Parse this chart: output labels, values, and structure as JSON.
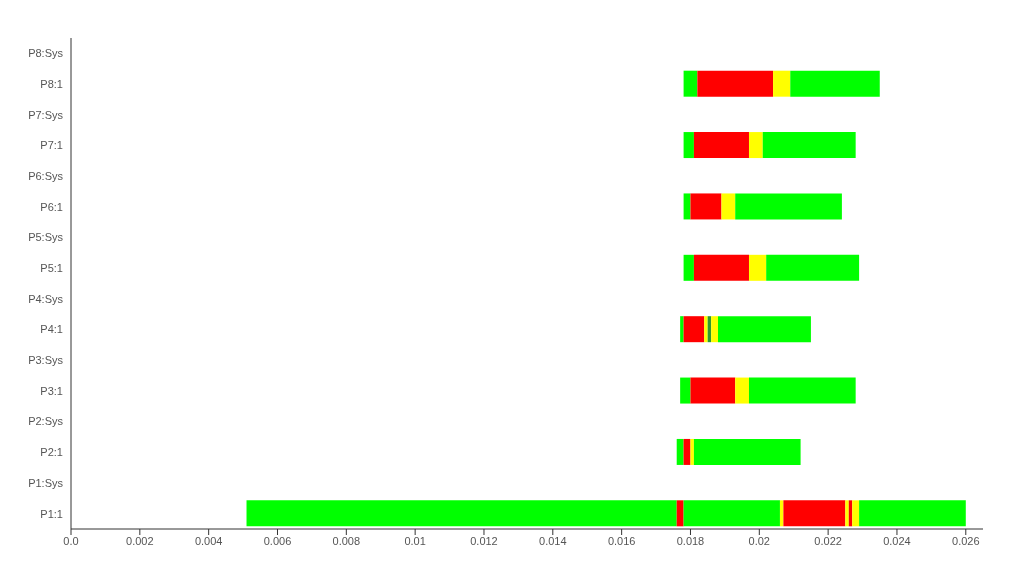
{
  "chart_data": {
    "type": "bar",
    "orientation": "horizontal",
    "grid": false,
    "legend": false,
    "categories": [
      "P8:Sys",
      "P8:1",
      "P7:Sys",
      "P7:1",
      "P6:Sys",
      "P6:1",
      "P5:Sys",
      "P5:1",
      "P4:Sys",
      "P4:1",
      "P3:Sys",
      "P3:1",
      "P2:Sys",
      "P2:1",
      "P1:Sys",
      "P1:1"
    ],
    "xlim": [
      0,
      0.0265
    ],
    "xticks": [
      {
        "value": 0,
        "label": "0.0"
      },
      0.002,
      0.004,
      0.006,
      0.008,
      0.01,
      0.012,
      0.014,
      0.016,
      0.018,
      0.02,
      0.022,
      0.024,
      0.026
    ],
    "series": [
      {
        "color": "#00ff00",
        "base": [
          null,
          0.0178,
          null,
          0.0178,
          null,
          0.0178,
          null,
          0.0178,
          null,
          0.0177,
          null,
          0.0177,
          null,
          0.0176,
          null,
          0.0051
        ],
        "values": [
          null,
          0.0004,
          null,
          0.0003,
          null,
          0.0002,
          null,
          0.0003,
          null,
          0.0001,
          null,
          0.0003,
          null,
          0.0002,
          null,
          0.0125
        ]
      },
      {
        "color": "#ff0000",
        "base": [
          null,
          0.0182,
          null,
          0.0181,
          null,
          0.018,
          null,
          0.0181,
          null,
          0.0178,
          null,
          0.018,
          null,
          0.0178,
          null,
          0.0176
        ],
        "values": [
          null,
          0.0022,
          null,
          0.0016,
          null,
          0.0009,
          null,
          0.0016,
          null,
          0.0006,
          null,
          0.0013,
          null,
          0.0002,
          null,
          0.0002
        ]
      },
      {
        "color": "#00ff00",
        "base": [
          null,
          null,
          null,
          null,
          null,
          null,
          null,
          null,
          null,
          null,
          null,
          null,
          null,
          null,
          null,
          0.0178
        ],
        "values": [
          null,
          null,
          null,
          null,
          null,
          null,
          null,
          null,
          null,
          null,
          null,
          null,
          null,
          null,
          null,
          0.0028
        ]
      },
      {
        "color": "#ffff00",
        "base": [
          null,
          0.0204,
          null,
          0.0197,
          null,
          0.0189,
          null,
          0.0197,
          null,
          0.0184,
          null,
          0.0193,
          null,
          0.018,
          null,
          0.0206
        ],
        "values": [
          null,
          0.0005,
          null,
          0.0004,
          null,
          0.0004,
          null,
          0.0005,
          null,
          0.0001,
          null,
          0.0004,
          null,
          0.0001,
          null,
          0.0001
        ]
      },
      {
        "color": "#2e9a2e",
        "base": [
          null,
          null,
          null,
          null,
          null,
          null,
          null,
          null,
          null,
          0.0185,
          null,
          null,
          null,
          null,
          null,
          null
        ],
        "values": [
          null,
          null,
          null,
          null,
          null,
          null,
          null,
          null,
          null,
          0.0001,
          null,
          null,
          null,
          null,
          null,
          null
        ]
      },
      {
        "color": "#ff0000",
        "base": [
          null,
          null,
          null,
          null,
          null,
          null,
          null,
          null,
          null,
          null,
          null,
          null,
          null,
          null,
          null,
          0.0207
        ],
        "values": [
          null,
          null,
          null,
          null,
          null,
          null,
          null,
          null,
          null,
          null,
          null,
          null,
          null,
          null,
          null,
          0.0018
        ]
      },
      {
        "color": "#ffff00",
        "base": [
          null,
          null,
          null,
          null,
          null,
          null,
          null,
          null,
          null,
          0.0186,
          null,
          null,
          null,
          null,
          null,
          0.0225
        ],
        "values": [
          null,
          null,
          null,
          null,
          null,
          null,
          null,
          null,
          null,
          0.0002,
          null,
          null,
          null,
          null,
          null,
          0.0001
        ]
      },
      {
        "color": "#ff0000",
        "base": [
          null,
          null,
          null,
          null,
          null,
          null,
          null,
          null,
          null,
          null,
          null,
          null,
          null,
          null,
          null,
          0.0226
        ],
        "values": [
          null,
          null,
          null,
          null,
          null,
          null,
          null,
          null,
          null,
          null,
          null,
          null,
          null,
          null,
          null,
          0.0001
        ]
      },
      {
        "color": "#ffff00",
        "base": [
          null,
          null,
          null,
          null,
          null,
          null,
          null,
          null,
          null,
          null,
          null,
          null,
          null,
          null,
          null,
          0.0227
        ],
        "values": [
          null,
          null,
          null,
          null,
          null,
          null,
          null,
          null,
          null,
          null,
          null,
          null,
          null,
          null,
          null,
          0.0002
        ]
      },
      {
        "color": "#00ff00",
        "base": [
          null,
          0.0209,
          null,
          0.0201,
          null,
          0.0193,
          null,
          0.0202,
          null,
          0.0188,
          null,
          0.0197,
          null,
          0.0181,
          null,
          0.0229
        ],
        "values": [
          null,
          0.0026,
          null,
          0.0027,
          null,
          0.0031,
          null,
          0.0027,
          null,
          0.0027,
          null,
          0.0031,
          null,
          0.0031,
          null,
          0.0031
        ]
      }
    ]
  }
}
